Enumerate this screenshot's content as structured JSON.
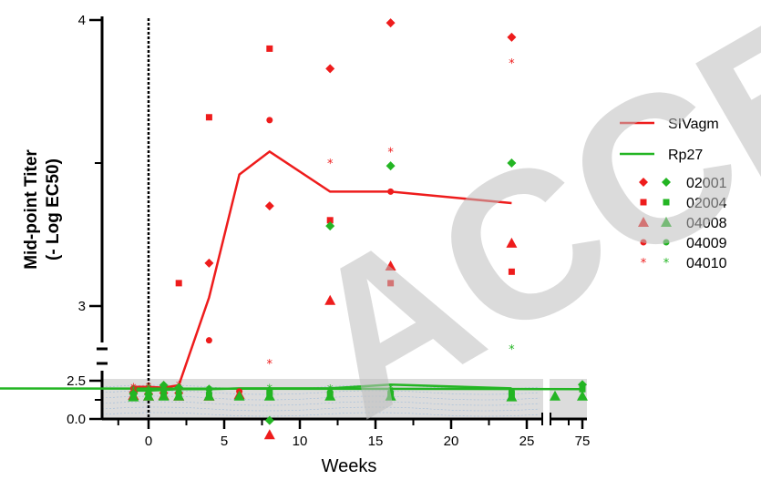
{
  "chart_data": {
    "type": "scatter",
    "xlabel": "Weeks",
    "ylabel_line1": "Mid-point Titer",
    "ylabel_line2": "(- Log EC50)",
    "watermark": "ACCEPTED",
    "x_tick_labels": [
      "0",
      "5",
      "10",
      "15",
      "20",
      "25",
      "75"
    ],
    "y_tick_labels": [
      "0.0",
      "2.5",
      "3",
      "4"
    ],
    "y_axis_segments": [
      "0.0-2.5",
      "2.75-4"
    ],
    "x_axis_segments": [
      "-2-25",
      "73-75"
    ],
    "colors": {
      "SIVagm": "#ee1c1c",
      "Rp27": "#23b523",
      "reference_band": "#d0d0d0"
    },
    "legend_position": "right",
    "legend_lines": [
      {
        "name": "SIVagm",
        "color": "#ee1c1c"
      },
      {
        "name": "Rp27",
        "color": "#23b523"
      }
    ],
    "legend_markers": [
      {
        "name": "02001",
        "marker": "diamond"
      },
      {
        "name": "02004",
        "marker": "square"
      },
      {
        "name": "04008",
        "marker": "triangle"
      },
      {
        "name": "04009",
        "marker": "circle"
      },
      {
        "name": "04010",
        "marker": "star"
      }
    ],
    "mean_lines": [
      {
        "name": "SIVagm",
        "x": [
          -1,
          0,
          1,
          2,
          4,
          6,
          8,
          12,
          16,
          24
        ],
        "y": [
          2.1,
          2.1,
          2.05,
          2.2,
          3.03,
          3.46,
          3.54,
          3.4,
          3.4,
          3.36
        ]
      },
      {
        "name": "Rp27",
        "x": [
          -1,
          0,
          1,
          2,
          4,
          6,
          8,
          12,
          16,
          24,
          75
        ],
        "y": [
          1.85,
          1.85,
          1.9,
          1.95,
          1.95,
          2.0,
          2.0,
          2.0,
          2.25,
          2.0,
          1.95
        ]
      }
    ],
    "series": [
      {
        "name": "02001",
        "group": "SIVagm",
        "x": [
          -1,
          0,
          1,
          2,
          4,
          8,
          12,
          16,
          24
        ],
        "y": [
          1.75,
          1.65,
          1.7,
          1.7,
          3.15,
          3.35,
          3.83,
          3.99,
          3.94
        ]
      },
      {
        "name": "02004",
        "group": "SIVagm",
        "x": [
          -1,
          0,
          1,
          2,
          4,
          8,
          12,
          16,
          24
        ],
        "y": [
          1.6,
          1.6,
          1.5,
          3.08,
          3.66,
          3.9,
          3.3,
          3.08,
          3.12
        ]
      },
      {
        "name": "04008",
        "group": "SIVagm",
        "x": [
          -1,
          0,
          1,
          2,
          4,
          6,
          8,
          12,
          16,
          24
        ],
        "y": [
          1.55,
          1.5,
          1.55,
          1.5,
          1.5,
          1.6,
          2.55,
          3.02,
          3.14,
          3.22
        ]
      },
      {
        "name": "04009",
        "group": "SIVagm",
        "x": [
          -1,
          0,
          1,
          2,
          4,
          6,
          8,
          16
        ],
        "y": [
          2.0,
          1.7,
          1.8,
          2.0,
          2.88,
          1.8,
          3.65,
          3.4
        ]
      },
      {
        "name": "04010",
        "group": "SIVagm",
        "x": [
          -1,
          0,
          2,
          8,
          12,
          16,
          24
        ],
        "y": [
          2.05,
          2.1,
          2.2,
          2.8,
          3.5,
          3.54,
          3.85
        ]
      },
      {
        "name": "02001",
        "group": "Rp27",
        "x": [
          -1,
          0,
          1,
          2,
          4,
          8,
          12,
          16,
          24,
          75
        ],
        "y": [
          1.65,
          1.6,
          2.2,
          2.05,
          1.95,
          2.6,
          3.28,
          3.49,
          3.5,
          2.25
        ]
      },
      {
        "name": "02004",
        "group": "Rp27",
        "x": [
          -1,
          0,
          1,
          2,
          4,
          8,
          12,
          16,
          24,
          75
        ],
        "y": [
          1.6,
          1.55,
          1.5,
          1.5,
          1.5,
          1.7,
          1.6,
          1.5,
          1.6,
          1.95
        ]
      },
      {
        "name": "04008",
        "group": "Rp27",
        "x": [
          -1,
          0,
          1,
          2,
          4,
          6,
          8,
          12,
          16,
          24,
          73,
          75
        ],
        "y": [
          1.45,
          1.5,
          1.5,
          1.5,
          1.5,
          1.5,
          1.5,
          1.5,
          1.5,
          1.45,
          1.5,
          1.5
        ]
      },
      {
        "name": "04009",
        "group": "Rp27",
        "x": [
          0,
          1,
          2,
          4,
          8,
          12,
          16,
          24
        ],
        "y": [
          1.75,
          1.8,
          1.75,
          1.7,
          1.7,
          1.75,
          1.75,
          1.8
        ]
      },
      {
        "name": "04010",
        "group": "Rp27",
        "x": [
          -1,
          0,
          4,
          8,
          12,
          16,
          24,
          75
        ],
        "y": [
          1.9,
          2.0,
          1.9,
          2.0,
          1.95,
          2.0,
          2.85,
          1.95
        ]
      }
    ]
  }
}
